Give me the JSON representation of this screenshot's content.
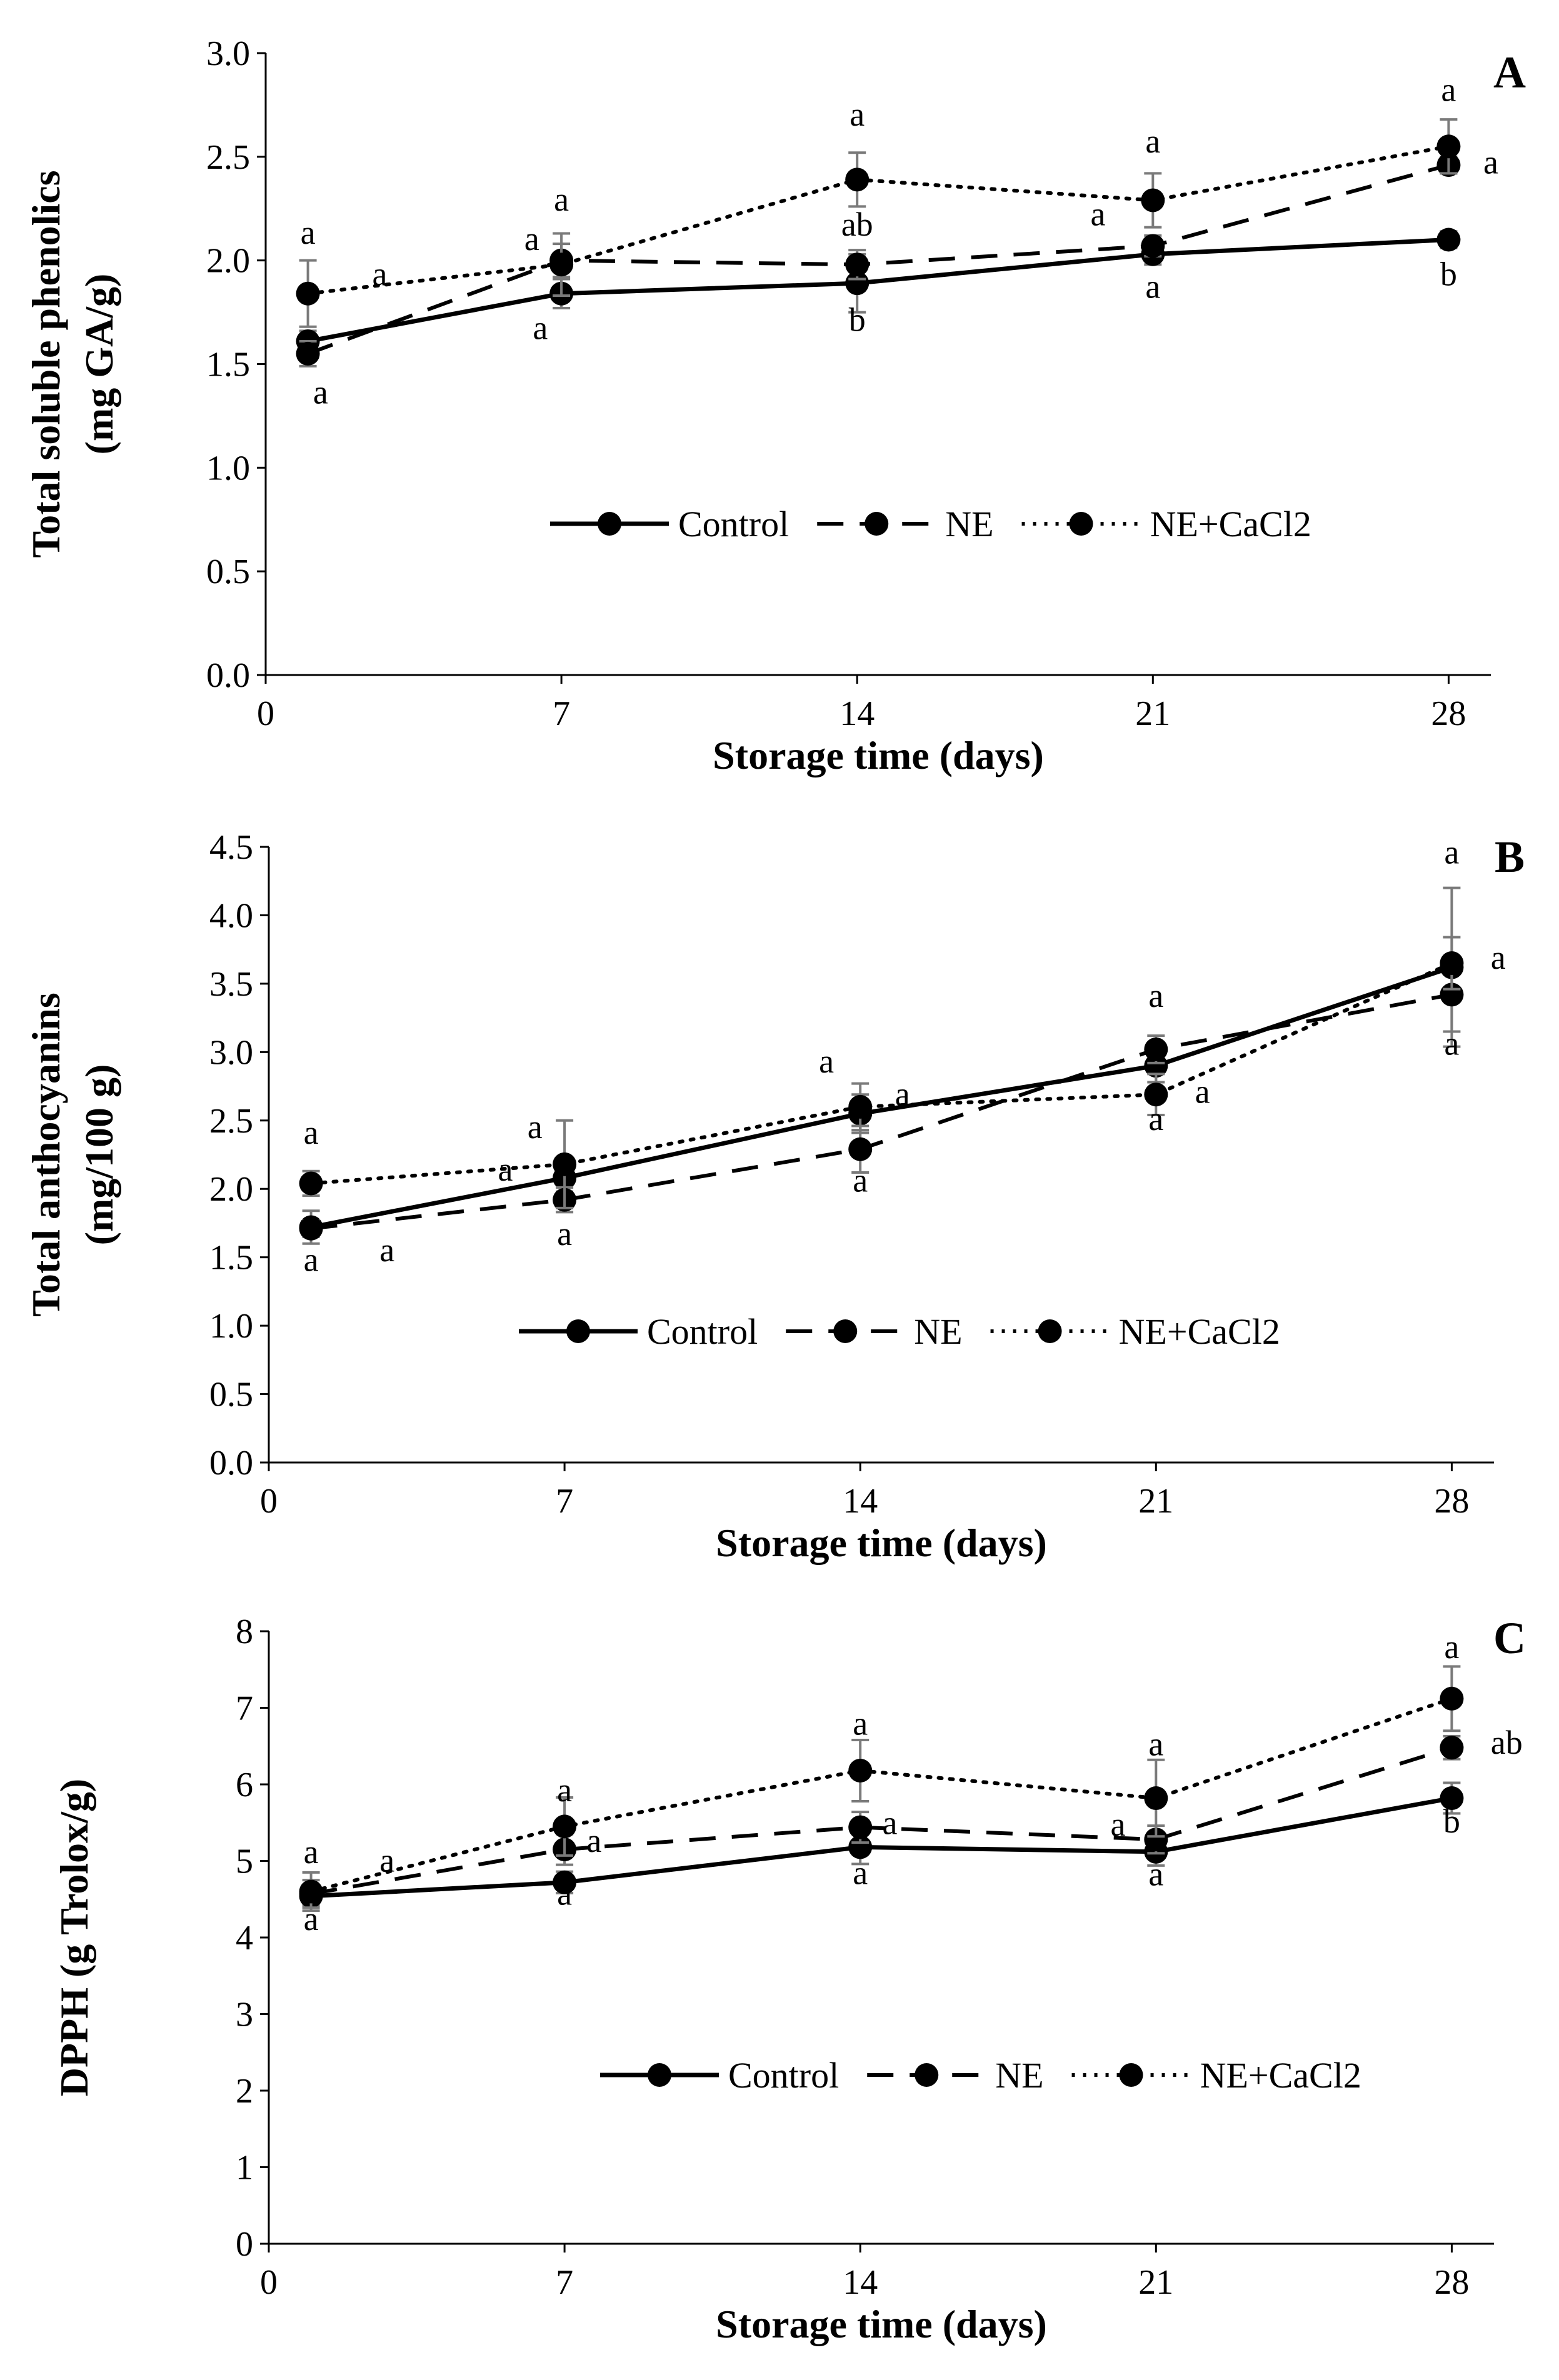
{
  "chart_data": [
    {
      "type": "line",
      "panel_label": "A",
      "ylabel": [
        "Total soluble phenolics",
        "(mg GA/g)"
      ],
      "xlabel": "Storage time (days)",
      "ylim": [
        0,
        3
      ],
      "yticks": [
        "0.0",
        "0.5",
        "1.0",
        "1.5",
        "2.0",
        "2.5",
        "3.0"
      ],
      "xlim": [
        0,
        29
      ],
      "xticks": [
        "0",
        "7",
        "14",
        "21",
        "28"
      ],
      "x": [
        1,
        7,
        14,
        21,
        28
      ],
      "legend": [
        "Control",
        "NE",
        "NE+CaCl2"
      ],
      "series": [
        {
          "name": "Control",
          "style": "solid",
          "values": [
            1.61,
            1.84,
            1.89,
            2.03,
            2.1
          ],
          "error": [
            0.05,
            0.07,
            0.14,
            0.05,
            0.04
          ]
        },
        {
          "name": "NE",
          "style": "dashed",
          "values": [
            1.55,
            2.0,
            1.98,
            2.07,
            2.46
          ],
          "error": [
            0.06,
            0.08,
            0.07,
            0.05,
            0.04
          ]
        },
        {
          "name": "NE+CaCl2",
          "style": "dotted",
          "values": [
            1.84,
            1.98,
            2.39,
            2.29,
            2.55
          ],
          "error": [
            0.16,
            0.15,
            0.13,
            0.13,
            0.13
          ]
        }
      ],
      "annotations": [
        {
          "x": 1,
          "y": 2.08,
          "text": "a"
        },
        {
          "x": 2.7,
          "y": 1.88,
          "text": "a"
        },
        {
          "x": 1.3,
          "y": 1.31,
          "text": "a"
        },
        {
          "x": 6.3,
          "y": 2.05,
          "text": "a"
        },
        {
          "x": 7,
          "y": 2.24,
          "text": "a"
        },
        {
          "x": 6.5,
          "y": 1.62,
          "text": "a"
        },
        {
          "x": 14,
          "y": 2.65,
          "text": "a"
        },
        {
          "x": 14,
          "y": 2.12,
          "text": "ab"
        },
        {
          "x": 14,
          "y": 1.66,
          "text": "b"
        },
        {
          "x": 19.7,
          "y": 2.17,
          "text": "a"
        },
        {
          "x": 21,
          "y": 2.52,
          "text": "a"
        },
        {
          "x": 21,
          "y": 1.82,
          "text": "a"
        },
        {
          "x": 28,
          "y": 2.77,
          "text": "a"
        },
        {
          "x": 29,
          "y": 2.42,
          "text": "a"
        },
        {
          "x": 28,
          "y": 1.88,
          "text": "b"
        }
      ]
    },
    {
      "type": "line",
      "panel_label": "B",
      "ylabel": [
        "Total anthocyanins",
        "(mg/100 g)"
      ],
      "xlabel": "Storage time (days)",
      "ylim": [
        0,
        4.5
      ],
      "yticks": [
        "0.0",
        "0.5",
        "1.0",
        "1.5",
        "2.0",
        "2.5",
        "3.0",
        "3.5",
        "4.0",
        "4.5"
      ],
      "xlim": [
        0,
        29
      ],
      "xticks": [
        "0",
        "7",
        "14",
        "21",
        "28"
      ],
      "x": [
        1,
        7,
        14,
        21,
        28
      ],
      "legend": [
        "Control",
        "NE",
        "NE+CaCl2"
      ],
      "series": [
        {
          "name": "Control",
          "style": "solid",
          "values": [
            1.72,
            2.08,
            2.55,
            2.9,
            3.62
          ],
          "error": [
            0.12,
            0.1,
            0.14,
            0.12,
            0.58
          ]
        },
        {
          "name": "NE",
          "style": "dashed",
          "values": [
            1.71,
            1.92,
            2.29,
            3.02,
            3.42
          ],
          "error": [
            0.06,
            0.09,
            0.17,
            0.1,
            0.27
          ]
        },
        {
          "name": "NE+CaCl2",
          "style": "dotted",
          "values": [
            2.04,
            2.18,
            2.6,
            2.69,
            3.65
          ],
          "error": [
            0.09,
            0.32,
            0.17,
            0.15,
            0.19
          ]
        }
      ],
      "annotations": [
        {
          "x": 1,
          "y": 2.33,
          "text": "a"
        },
        {
          "x": 1,
          "y": 1.4,
          "text": "a"
        },
        {
          "x": 2.8,
          "y": 1.47,
          "text": "a"
        },
        {
          "x": 6.3,
          "y": 2.37,
          "text": "a"
        },
        {
          "x": 5.6,
          "y": 2.06,
          "text": "a"
        },
        {
          "x": 7,
          "y": 1.59,
          "text": "a"
        },
        {
          "x": 13.2,
          "y": 2.85,
          "text": "a"
        },
        {
          "x": 15,
          "y": 2.61,
          "text": "a"
        },
        {
          "x": 14,
          "y": 1.98,
          "text": "a"
        },
        {
          "x": 21,
          "y": 3.33,
          "text": "a"
        },
        {
          "x": 22.1,
          "y": 2.63,
          "text": "a"
        },
        {
          "x": 21,
          "y": 2.43,
          "text": "a"
        },
        {
          "x": 28,
          "y": 4.38,
          "text": "a"
        },
        {
          "x": 29.1,
          "y": 3.61,
          "text": "a"
        },
        {
          "x": 28,
          "y": 2.98,
          "text": "a"
        }
      ]
    },
    {
      "type": "line",
      "panel_label": "C",
      "ylabel": [
        "DPPH (g Trolox/g)"
      ],
      "xlabel": "Storage time (days)",
      "ylim": [
        0,
        8
      ],
      "yticks": [
        "0",
        "1",
        "2",
        "3",
        "4",
        "5",
        "6",
        "7",
        "8"
      ],
      "xlim": [
        0,
        29
      ],
      "xticks": [
        "0",
        "7",
        "14",
        "21",
        "28"
      ],
      "x": [
        1,
        7,
        14,
        21,
        28
      ],
      "legend": [
        "Control",
        "NE",
        "NE+CaCl2"
      ],
      "series": [
        {
          "name": "Control",
          "style": "solid",
          "values": [
            4.54,
            4.72,
            5.18,
            5.12,
            5.82
          ],
          "error": [
            0.12,
            0.14,
            0.22,
            0.18,
            0.2
          ]
        },
        {
          "name": "NE",
          "style": "dashed",
          "values": [
            4.57,
            5.15,
            5.44,
            5.28,
            6.48
          ],
          "error": [
            0.18,
            0.2,
            0.2,
            0.18,
            0.15
          ]
        },
        {
          "name": "NE+CaCl2",
          "style": "dotted",
          "values": [
            4.6,
            5.45,
            6.18,
            5.82,
            7.12
          ],
          "error": [
            0.25,
            0.38,
            0.4,
            0.5,
            0.42
          ]
        }
      ],
      "annotations": [
        {
          "x": 1,
          "y": 4.97,
          "text": "a"
        },
        {
          "x": 2.8,
          "y": 4.86,
          "text": "a"
        },
        {
          "x": 1,
          "y": 4.1,
          "text": "a"
        },
        {
          "x": 7,
          "y": 5.78,
          "text": "a"
        },
        {
          "x": 7.7,
          "y": 5.12,
          "text": "a"
        },
        {
          "x": 7,
          "y": 4.43,
          "text": "a"
        },
        {
          "x": 14,
          "y": 6.65,
          "text": "a"
        },
        {
          "x": 14.7,
          "y": 5.35,
          "text": "a"
        },
        {
          "x": 14,
          "y": 4.7,
          "text": "a"
        },
        {
          "x": 21,
          "y": 6.38,
          "text": "a"
        },
        {
          "x": 20.1,
          "y": 5.33,
          "text": "a"
        },
        {
          "x": 21,
          "y": 4.68,
          "text": "a"
        },
        {
          "x": 28,
          "y": 7.65,
          "text": "a"
        },
        {
          "x": 29.3,
          "y": 6.4,
          "text": "ab"
        },
        {
          "x": 28,
          "y": 5.37,
          "text": "b"
        }
      ]
    }
  ]
}
